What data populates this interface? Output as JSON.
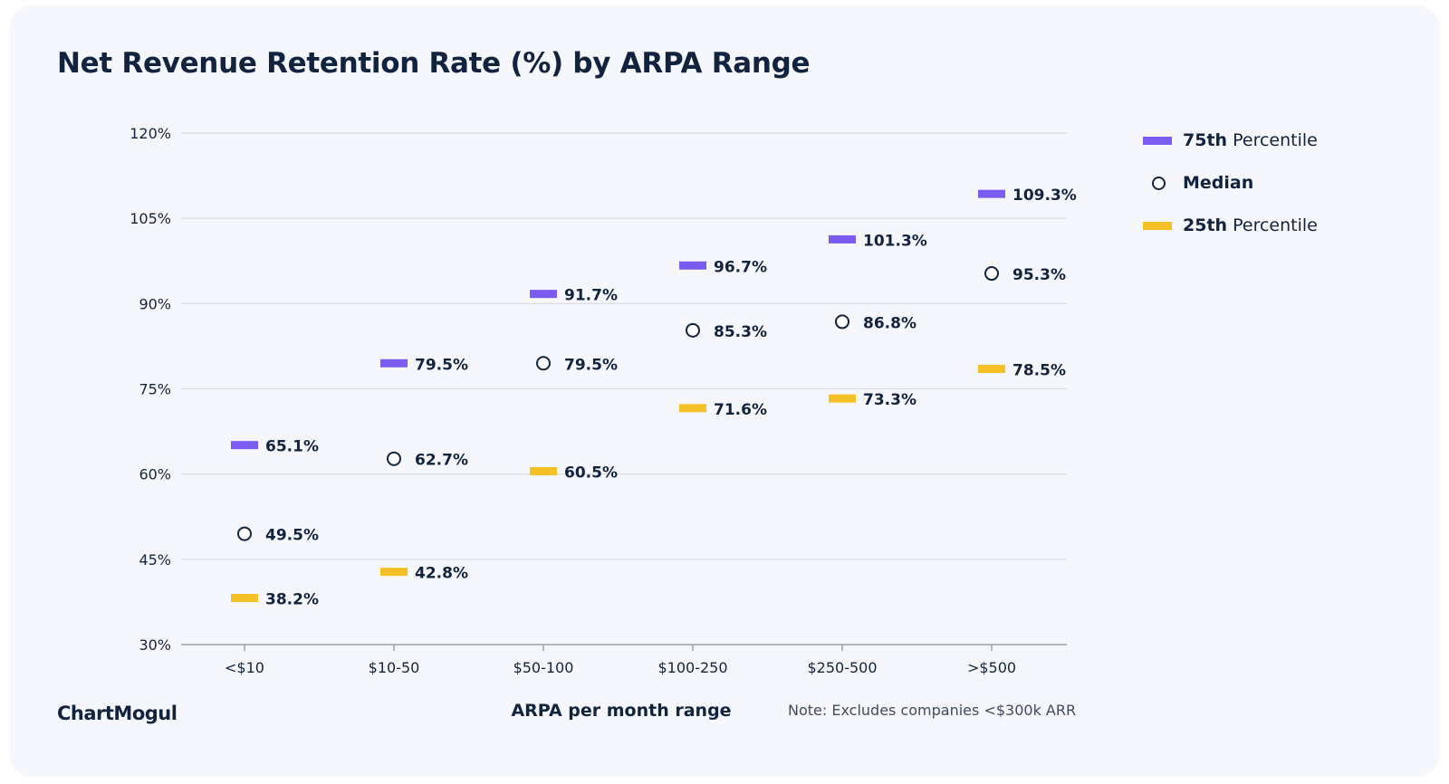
{
  "title": "Net Revenue Retention Rate (%) by ARPA Range",
  "brand": "ChartMogul",
  "note": "Note: Excludes companies <$300k ARR",
  "legend": {
    "p75_bold": "75th",
    "p75_rest": " Percentile",
    "median": "Median",
    "p25_bold": "25th",
    "p25_rest": " Percentile"
  },
  "colors": {
    "p75": "#7b5cf0",
    "p75_line_top": "#4a54de",
    "p75_line_bottom": "#8a6cf2",
    "p25": "#f5c025",
    "p25_line": "#f4a20f",
    "text": "#12233f",
    "grid": "#d7dbe3"
  },
  "chart_data": {
    "type": "range",
    "categories": [
      "<$10",
      "$10-50",
      "$50-100",
      "$100-250",
      "$250-500",
      ">$500"
    ],
    "series": [
      {
        "name": "75th Percentile",
        "values": [
          65.1,
          79.5,
          91.7,
          96.7,
          101.3,
          109.3
        ]
      },
      {
        "name": "Median",
        "values": [
          49.5,
          62.7,
          79.5,
          85.3,
          86.8,
          95.3
        ]
      },
      {
        "name": "25th Percentile",
        "values": [
          38.2,
          42.8,
          60.5,
          71.6,
          73.3,
          78.5
        ]
      }
    ],
    "value_labels": {
      "p75": [
        "65.1%",
        "79.5%",
        "91.7%",
        "96.7%",
        "101.3%",
        "109.3%"
      ],
      "median": [
        "49.5%",
        "62.7%",
        "79.5%",
        "85.3%",
        "86.8%",
        "95.3%"
      ],
      "p25": [
        "38.2%",
        "42.8%",
        "60.5%",
        "71.6%",
        "73.3%",
        "78.5%"
      ]
    },
    "xlabel": "ARPA per month range",
    "ylim": [
      30,
      120
    ],
    "yticks": [
      120,
      105,
      90,
      75,
      60,
      45,
      30
    ],
    "ytick_labels": [
      "120%",
      "105%",
      "90%",
      "75%",
      "60%",
      "45%",
      "30%"
    ],
    "grid": true,
    "legend_position": "right"
  }
}
